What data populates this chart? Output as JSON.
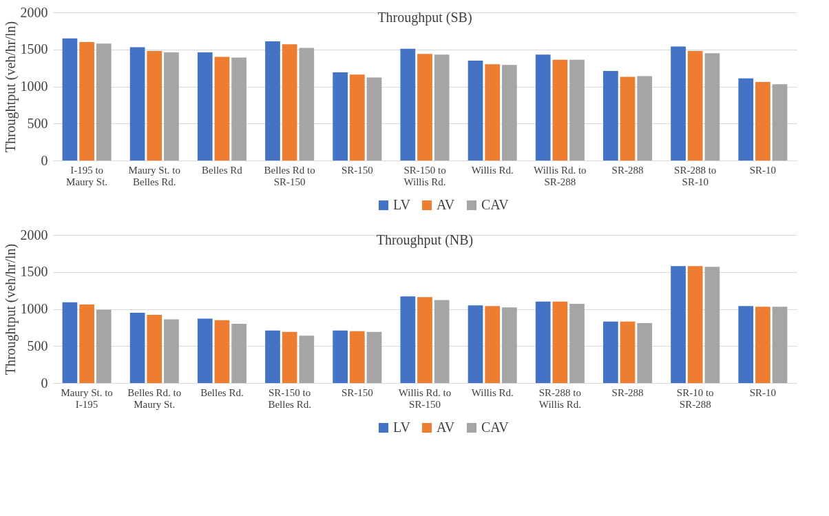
{
  "chart_data": [
    {
      "type": "bar",
      "title": "Throughput (SB)",
      "ylabel": "Throughtput (veh/hr/ln)",
      "categories": [
        "I-195 to Maury St.",
        "Maury St. to Belles Rd.",
        "Belles Rd",
        "Belles Rd to SR-150",
        "SR-150",
        "SR-150 to Willis Rd.",
        "Willis Rd.",
        "Willis Rd. to SR-288",
        "SR-288",
        "SR-288 to SR-10",
        "SR-10"
      ],
      "series": [
        {
          "name": "LV",
          "color": "#4472c4",
          "values": [
            1650,
            1530,
            1460,
            1610,
            1190,
            1510,
            1350,
            1430,
            1210,
            1540,
            1110
          ]
        },
        {
          "name": "AV",
          "color": "#ed7d31",
          "values": [
            1600,
            1480,
            1400,
            1570,
            1160,
            1440,
            1300,
            1360,
            1130,
            1480,
            1060
          ]
        },
        {
          "name": "CAV",
          "color": "#a5a5a5",
          "values": [
            1580,
            1460,
            1390,
            1520,
            1120,
            1430,
            1290,
            1360,
            1140,
            1450,
            1030
          ]
        }
      ],
      "ylim": [
        0,
        2000
      ],
      "yticks": [
        0,
        500,
        1000,
        1500,
        2000
      ],
      "grid": "y",
      "legend": "bottom"
    },
    {
      "type": "bar",
      "title": "Throughput (NB)",
      "ylabel": "Throughtput (veh/hr/ln)",
      "categories": [
        "Maury St. to I-195",
        "Belles Rd. to Maury St.",
        "Belles Rd.",
        "SR-150 to Belles Rd.",
        "SR-150",
        "Willis Rd. to SR-150",
        "Willis Rd.",
        "SR-288 to Willis Rd.",
        "SR-288",
        "SR-10 to SR-288",
        "SR-10"
      ],
      "series": [
        {
          "name": "LV",
          "color": "#4472c4",
          "values": [
            1090,
            950,
            870,
            710,
            710,
            1170,
            1050,
            1100,
            830,
            1580,
            1040
          ]
        },
        {
          "name": "AV",
          "color": "#ed7d31",
          "values": [
            1060,
            920,
            850,
            690,
            700,
            1160,
            1040,
            1100,
            830,
            1580,
            1030
          ]
        },
        {
          "name": "CAV",
          "color": "#a5a5a5",
          "values": [
            990,
            860,
            800,
            640,
            690,
            1120,
            1020,
            1070,
            810,
            1570,
            1030
          ]
        }
      ],
      "ylim": [
        0,
        2000
      ],
      "yticks": [
        0,
        500,
        1000,
        1500,
        2000
      ],
      "grid": "y",
      "legend": "bottom"
    }
  ]
}
